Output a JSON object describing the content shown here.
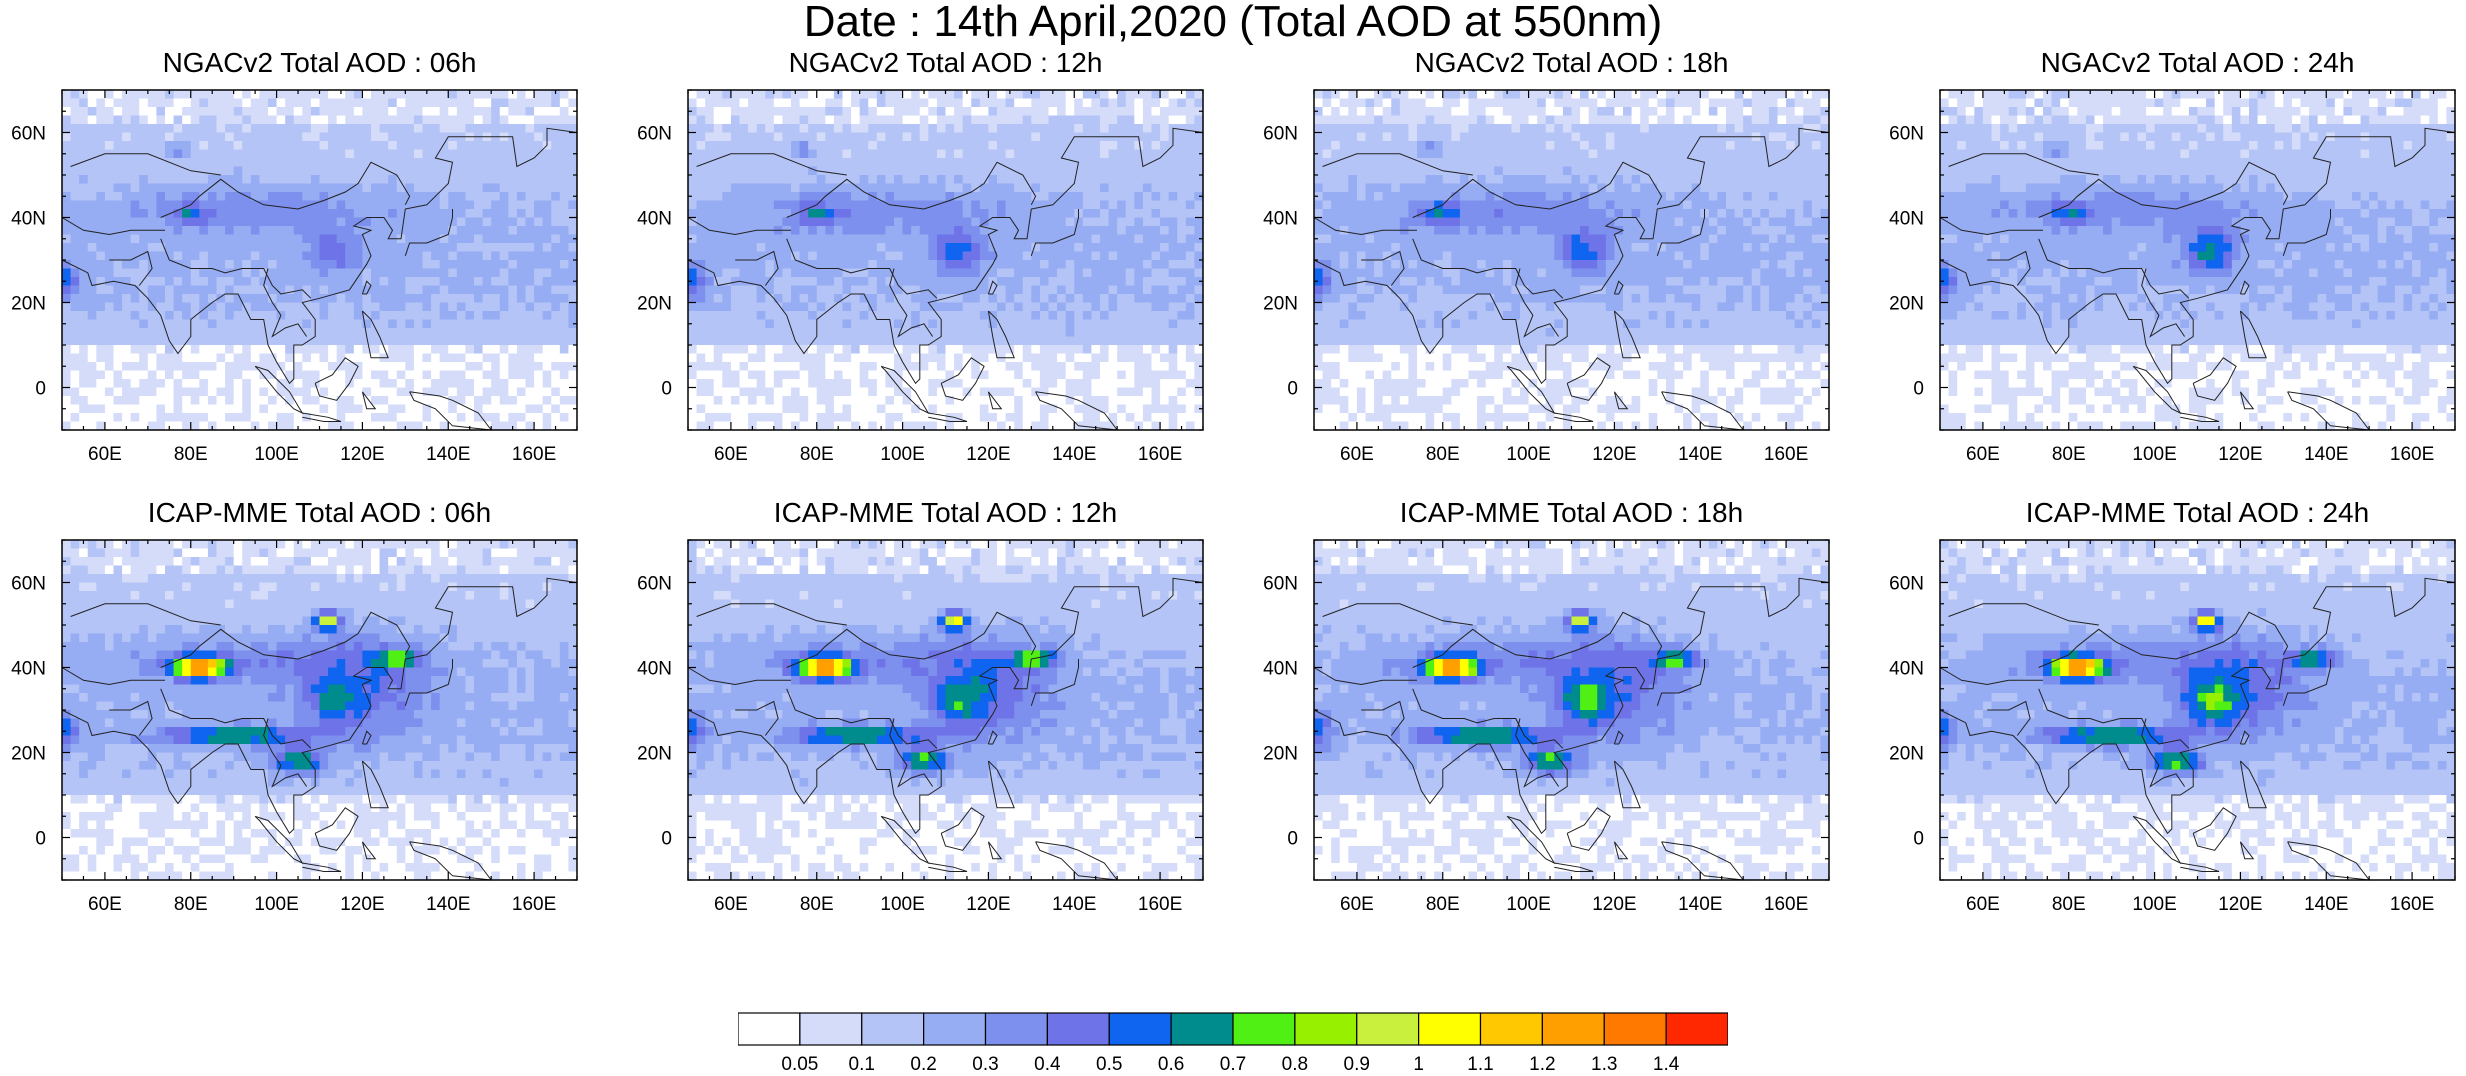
{
  "title": "Date : 14th April,2020 (Total AOD at 550nm)",
  "axes": {
    "lon_ticks": [
      "60E",
      "80E",
      "100E",
      "120E",
      "140E",
      "160E"
    ],
    "lat_ticks": [
      "60N",
      "40N",
      "20N",
      "0"
    ],
    "lon_range": [
      50,
      170
    ],
    "lat_range": [
      -10,
      70
    ]
  },
  "panels": [
    {
      "title": "NGACv2 Total AOD : 06h",
      "model": "NGACv2",
      "hour": "06h"
    },
    {
      "title": "NGACv2 Total AOD : 12h",
      "model": "NGACv2",
      "hour": "12h"
    },
    {
      "title": "NGACv2 Total AOD : 18h",
      "model": "NGACv2",
      "hour": "18h"
    },
    {
      "title": "NGACv2 Total AOD : 24h",
      "model": "NGACv2",
      "hour": "24h"
    },
    {
      "title": "ICAP-MME Total AOD : 06h",
      "model": "ICAP-MME",
      "hour": "06h"
    },
    {
      "title": "ICAP-MME Total AOD : 12h",
      "model": "ICAP-MME",
      "hour": "12h"
    },
    {
      "title": "ICAP-MME Total AOD : 18h",
      "model": "ICAP-MME",
      "hour": "18h"
    },
    {
      "title": "ICAP-MME Total AOD : 24h",
      "model": "ICAP-MME",
      "hour": "24h"
    }
  ],
  "colorbar": {
    "labels": [
      "0.05",
      "0.1",
      "0.2",
      "0.3",
      "0.4",
      "0.5",
      "0.6",
      "0.7",
      "0.8",
      "0.9",
      "1",
      "1.1",
      "1.2",
      "1.3",
      "1.4"
    ],
    "colors": [
      "#ffffff",
      "#d4dcfa",
      "#b4c4f7",
      "#96acf3",
      "#7d90ee",
      "#6e74e8",
      "#0f64f0",
      "#008c8c",
      "#50f014",
      "#96f000",
      "#c8f03c",
      "#ffff00",
      "#ffc800",
      "#ffa000",
      "#ff7800",
      "#ff2800"
    ]
  }
}
